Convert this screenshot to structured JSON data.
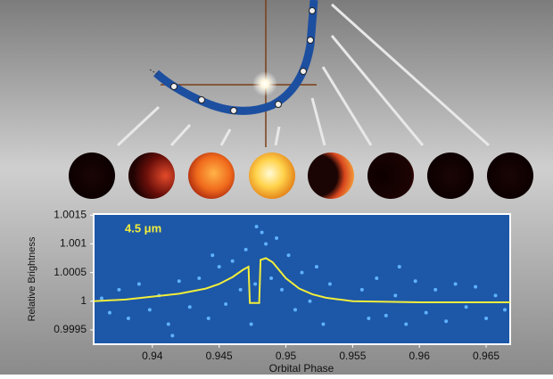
{
  "chart_data": {
    "type": "scatter",
    "y_label": "Relative Brightness",
    "x_label": "Orbital Phase",
    "annotation": "4.5 μm",
    "xlim": [
      0.9356,
      0.9668
    ],
    "xticks": [
      0.94,
      0.945,
      0.95,
      0.955,
      0.96,
      0.965
    ],
    "ylim": [
      0.99925,
      1.00152
    ],
    "yticks": [
      0.9995,
      1,
      1.0005,
      1.001,
      1.0015
    ],
    "series": [
      {
        "type": "scatter",
        "color": "#5fb2ff",
        "x": [
          0.9362,
          0.9368,
          0.9375,
          0.9382,
          0.939,
          0.9398,
          0.9405,
          0.9412,
          0.9415,
          0.942,
          0.9428,
          0.9435,
          0.9442,
          0.9445,
          0.945,
          0.9455,
          0.946,
          0.9466,
          0.947,
          0.9474,
          0.9477,
          0.9478,
          0.9482,
          0.9485,
          0.9489,
          0.9493,
          0.9497,
          0.9502,
          0.9507,
          0.9512,
          0.9518,
          0.9523,
          0.9528,
          0.9533,
          0.9557,
          0.9562,
          0.9568,
          0.9575,
          0.9582,
          0.9585,
          0.959,
          0.9597,
          0.9605,
          0.9612,
          0.962,
          0.9627,
          0.9635,
          0.9642,
          0.965,
          0.9657,
          0.9664
        ],
        "values": [
          1.00005,
          0.9998,
          1.0002,
          0.9997,
          1.0003,
          0.99985,
          1.0001,
          0.9996,
          0.9994,
          1.00035,
          0.9999,
          1.0004,
          0.9997,
          1.0008,
          1.0006,
          0.99995,
          1.0007,
          1.0002,
          1.0009,
          0.9996,
          1.0003,
          1.0013,
          1.0012,
          1.001,
          1.0004,
          1.0011,
          1.0002,
          1.0008,
          0.99985,
          1.0005,
          1.0,
          1.0006,
          0.9996,
          1.0003,
          1.0002,
          0.9997,
          1.0004,
          0.99975,
          1.0001,
          1.0006,
          0.9996,
          1.00035,
          0.9998,
          1.0002,
          0.99965,
          1.0003,
          0.9999,
          1.00025,
          0.9997,
          1.0001,
          0.99985
        ]
      },
      {
        "type": "line",
        "color": "#f2ee3a",
        "x": [
          0.9356,
          0.938,
          0.94,
          0.942,
          0.944,
          0.945,
          0.946,
          0.9468,
          0.9472,
          0.9473,
          0.948,
          0.9481,
          0.9485,
          0.949,
          0.95,
          0.951,
          0.952,
          0.953,
          0.954,
          0.955,
          0.96,
          0.9668
        ],
        "values": [
          1.0,
          1.00003,
          1.00008,
          1.00013,
          1.00022,
          1.0003,
          1.00042,
          1.00055,
          1.0006,
          0.99997,
          0.99997,
          1.00072,
          1.00075,
          1.00068,
          1.0004,
          1.00022,
          1.00012,
          1.00006,
          1.00003,
          1.0,
          0.99998,
          0.99998
        ]
      }
    ]
  }
}
